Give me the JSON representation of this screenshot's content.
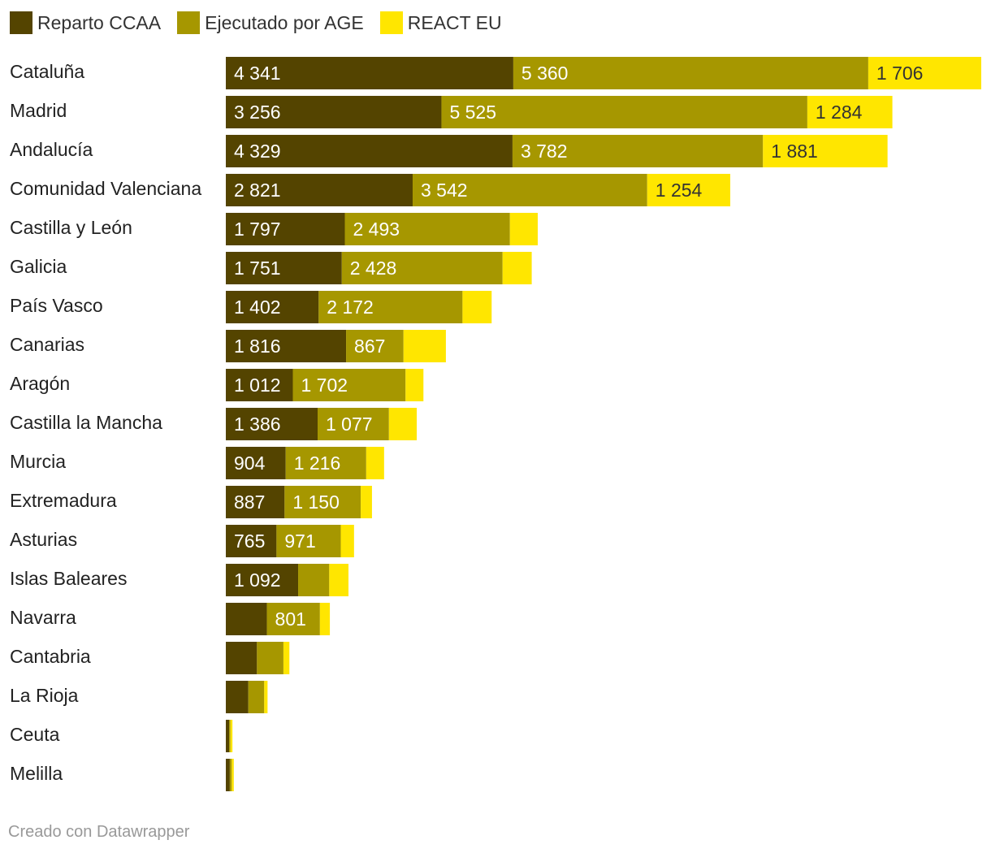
{
  "chart_data": {
    "type": "bar",
    "orientation": "horizontal",
    "stacked": true,
    "legend_position": "top-left",
    "grid": false,
    "categories": [
      "Cataluña",
      "Madrid",
      "Andalucía",
      "Comunidad Valenciana",
      "Castilla y León",
      "Galicia",
      "País Vasco",
      "Canarias",
      "Aragón",
      "Castilla la Mancha",
      "Murcia",
      "Extremadura",
      "Asturias",
      "Islas Baleares",
      "Navarra",
      "Cantabria",
      "La Rioja",
      "Ceuta",
      "Melilla"
    ],
    "series": [
      {
        "name": "Reparto CCAA",
        "color": "#544400",
        "values": [
          4341,
          3256,
          4329,
          2821,
          1797,
          1751,
          1402,
          1816,
          1012,
          1386,
          904,
          887,
          765,
          1092,
          620,
          470,
          340,
          50,
          60
        ],
        "labels": [
          "4 341",
          "3 256",
          "4 329",
          "2 821",
          "1 797",
          "1 751",
          "1 402",
          "1 816",
          "1 012",
          "1 386",
          "904",
          "887",
          "765",
          "1 092",
          "",
          "",
          "",
          "",
          ""
        ]
      },
      {
        "name": "Ejecutado por AGE",
        "color": "#a69700",
        "values": [
          5360,
          5525,
          3782,
          3542,
          2493,
          2428,
          2172,
          867,
          1702,
          1077,
          1216,
          1150,
          971,
          470,
          801,
          400,
          240,
          20,
          30
        ],
        "labels": [
          "5 360",
          "5 525",
          "3 782",
          "3 542",
          "2 493",
          "2 428",
          "2 172",
          "867",
          "1 702",
          "1 077",
          "1 216",
          "1 150",
          "971",
          "",
          "801",
          "",
          "",
          "",
          ""
        ]
      },
      {
        "name": "REACT EU",
        "color": "#ffe600",
        "values": [
          1706,
          1284,
          1881,
          1254,
          420,
          440,
          440,
          640,
          270,
          420,
          270,
          170,
          200,
          290,
          150,
          90,
          50,
          30,
          30
        ],
        "labels": [
          "1 706",
          "1 284",
          "1 881",
          "1 254",
          "",
          "",
          "",
          "",
          "",
          "",
          "",
          "",
          "",
          "",
          "",
          "",
          "",
          "",
          ""
        ]
      }
    ]
  },
  "footer": "Creado con Datawrapper"
}
